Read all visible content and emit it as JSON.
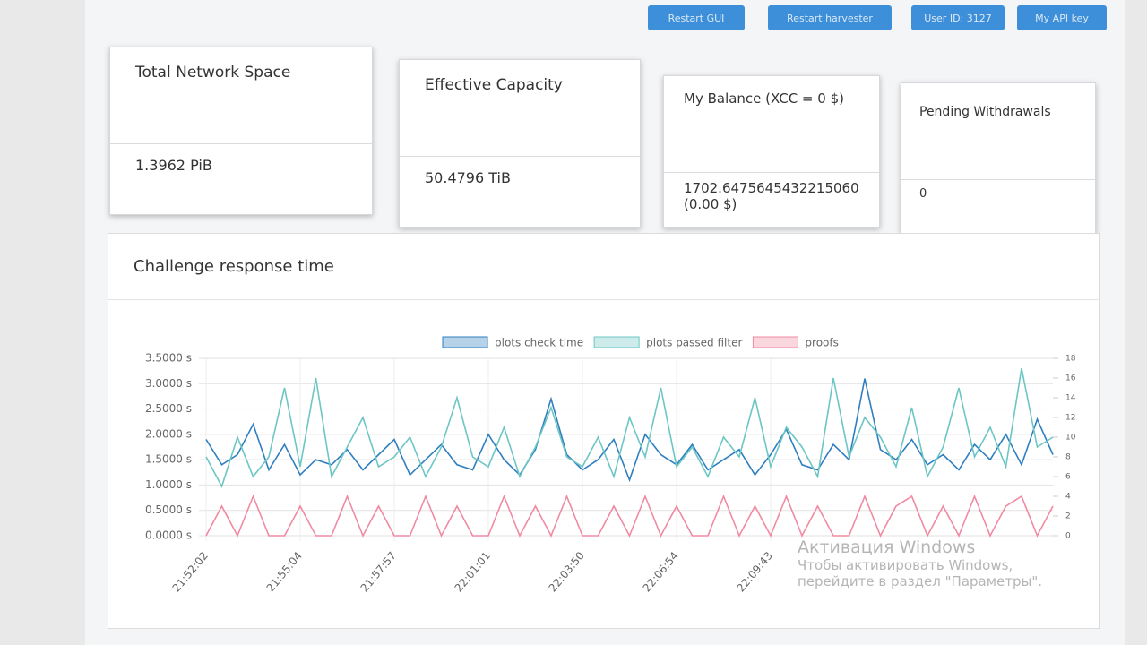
{
  "header": {
    "buttons": [
      "Restart GUI",
      "Restart harvester",
      "User ID: 3127",
      "My API key"
    ]
  },
  "cards": [
    {
      "title": "Total Network Space",
      "value": "1.3962 PiB"
    },
    {
      "title": "Effective Capacity",
      "value": "50.4796 TiB"
    },
    {
      "title": "My Balance (XCC = 0 $)",
      "value": "1702.6475645432215060 (0.00 $)"
    },
    {
      "title": "Pending Withdrawals",
      "value": "0"
    }
  ],
  "panel": {
    "title": "Challenge response time"
  },
  "watermark": {
    "title": "Активация Windows",
    "text": "Чтобы активировать Windows, перейдите в раздел \"Параметры\"."
  },
  "chart_data": {
    "type": "line",
    "categories": [
      "21:52:02",
      null,
      null,
      null,
      null,
      null,
      "21:55:04",
      null,
      null,
      null,
      null,
      null,
      "21:57:57",
      null,
      null,
      null,
      null,
      null,
      "22:01:01",
      null,
      null,
      null,
      null,
      null,
      "22:03:50",
      null,
      null,
      null,
      null,
      null,
      "22:06:54",
      null,
      null,
      null,
      null,
      null,
      "22:09:43",
      null,
      null,
      null,
      null,
      null,
      null,
      null,
      null,
      null,
      null,
      null,
      null,
      null,
      null,
      null,
      null,
      null,
      null
    ],
    "series": [
      {
        "name": "plots check time",
        "color": "#2f7fc0",
        "values": [
          1.9,
          1.4,
          1.6,
          2.2,
          1.3,
          1.8,
          1.2,
          1.5,
          1.4,
          1.7,
          1.3,
          1.6,
          1.9,
          1.2,
          1.5,
          1.8,
          1.4,
          1.3,
          2.0,
          1.5,
          1.2,
          1.7,
          2.7,
          1.6,
          1.3,
          1.5,
          1.9,
          1.1,
          2.0,
          1.6,
          1.4,
          1.8,
          1.3,
          1.5,
          1.7,
          1.2,
          1.6,
          2.1,
          1.4,
          1.3,
          1.8,
          1.5,
          3.1,
          1.7,
          1.5,
          1.9,
          1.4,
          1.6,
          1.3,
          1.8,
          1.5,
          2.0,
          1.4,
          2.3,
          1.6
        ]
      },
      {
        "name": "plots passed filter",
        "color": "#6cc6c4",
        "axis": "y2",
        "values": [
          8,
          5,
          10,
          6,
          8,
          15,
          7,
          16,
          6,
          9,
          12,
          7,
          8,
          10,
          6,
          9,
          14,
          8,
          7,
          11,
          6,
          9,
          13,
          8,
          7,
          10,
          6,
          12,
          8,
          15,
          7,
          9,
          6,
          10,
          8,
          14,
          7,
          11,
          9,
          6,
          16,
          8,
          12,
          10,
          7,
          13,
          6,
          9,
          15,
          8,
          11,
          7,
          17,
          9,
          10
        ]
      },
      {
        "name": "proofs",
        "color": "#f08aa2",
        "axis": "y2",
        "values": [
          0,
          3,
          0,
          4,
          0,
          0,
          3,
          0,
          0,
          4,
          0,
          3,
          0,
          0,
          4,
          0,
          3,
          0,
          0,
          4,
          0,
          3,
          0,
          4,
          0,
          0,
          3,
          0,
          4,
          0,
          3,
          0,
          0,
          4,
          0,
          3,
          0,
          4,
          0,
          3,
          0,
          0,
          4,
          0,
          3,
          4,
          0,
          3,
          0,
          4,
          0,
          3,
          4,
          0,
          3
        ]
      }
    ],
    "ylim": [
      0,
      3.5
    ],
    "yticks": [
      {
        "value": 0,
        "label": "0.0000 s"
      },
      {
        "value": 0.5,
        "label": "0.5000 s"
      },
      {
        "value": 1,
        "label": "1.0000 s"
      },
      {
        "value": 1.5,
        "label": "1.5000 s"
      },
      {
        "value": 2,
        "label": "2.0000 s"
      },
      {
        "value": 2.5,
        "label": "2.5000 s"
      },
      {
        "value": 3,
        "label": "3.0000 s"
      },
      {
        "value": 3.5,
        "label": "3.5000 s"
      }
    ],
    "y2lim": [
      0,
      18
    ],
    "y2ticks": [
      0,
      2,
      4,
      6,
      8,
      10,
      12,
      14,
      16,
      18
    ],
    "grid": true,
    "legend": "top"
  }
}
